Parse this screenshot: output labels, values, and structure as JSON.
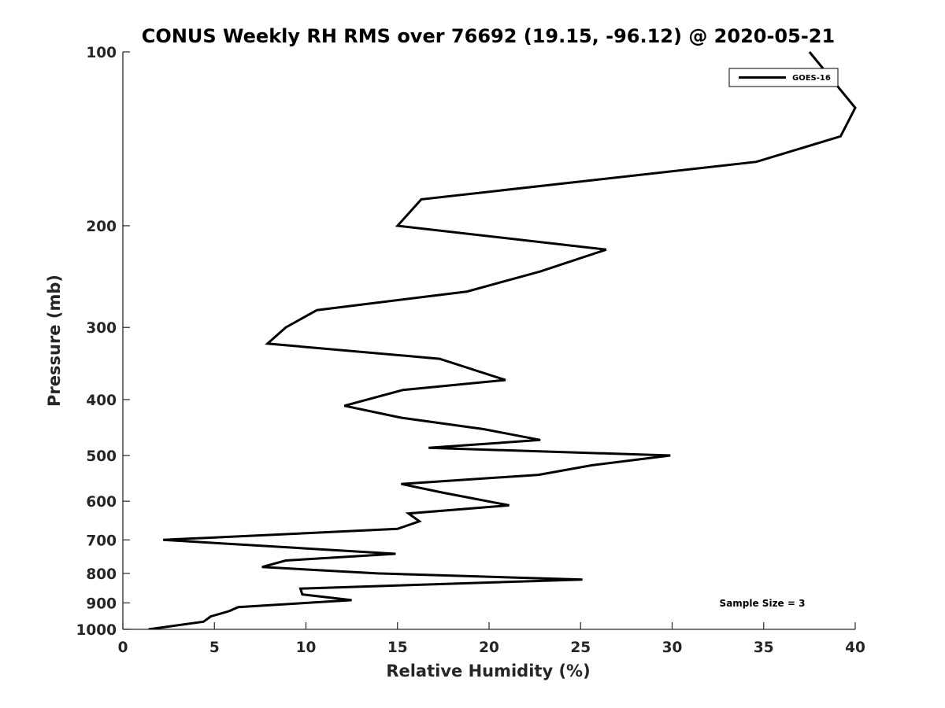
{
  "chart_data": {
    "type": "line",
    "title": "CONUS Weekly RH RMS over 76692 (19.15, -96.12) @ 2020-05-21",
    "xlabel": "Relative Humidity (%)",
    "ylabel": "Pressure (mb)",
    "xlim": [
      0,
      40
    ],
    "ylim": [
      1000,
      100
    ],
    "y_scale": "log",
    "grid": false,
    "legend_position": "top-right",
    "x_ticks": [
      0,
      5,
      10,
      15,
      20,
      25,
      30,
      35,
      40
    ],
    "y_ticks": [
      100,
      200,
      300,
      400,
      500,
      600,
      700,
      800,
      900,
      1000
    ],
    "series": [
      {
        "name": "GOES-16",
        "color": "#000000",
        "x": [
          37.5,
          40.0,
          39.2,
          34.6,
          16.3,
          15.0,
          26.4,
          22.8,
          18.8,
          10.6,
          8.9,
          7.9,
          17.3,
          20.9,
          15.3,
          12.1,
          15.2,
          19.7,
          22.8,
          16.7,
          29.9,
          25.6,
          22.7,
          15.2,
          17.5,
          21.1,
          15.6,
          16.2,
          15.0,
          2.2,
          14.9,
          8.9,
          7.6,
          13.9,
          25.1,
          9.7,
          9.8,
          12.5,
          6.3,
          5.8,
          4.8,
          4.4,
          1.4
        ],
        "y": [
          100,
          125,
          140,
          155,
          180,
          200,
          220,
          240,
          260,
          280,
          300,
          320,
          340,
          370,
          385,
          410,
          430,
          450,
          470,
          485,
          500,
          520,
          540,
          560,
          580,
          610,
          630,
          650,
          670,
          700,
          740,
          760,
          780,
          800,
          820,
          850,
          870,
          890,
          915,
          930,
          950,
          970,
          1000
        ]
      }
    ],
    "annotations": [
      "Sample Size = 3"
    ]
  }
}
